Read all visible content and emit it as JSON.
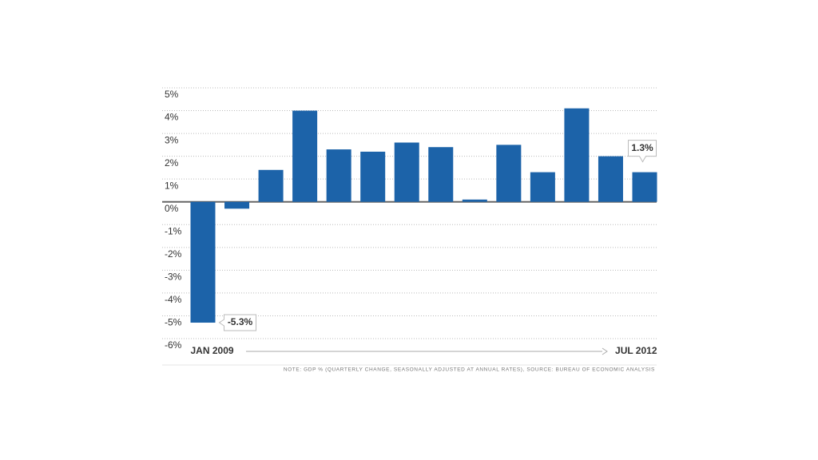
{
  "chart_data": {
    "type": "bar",
    "categories": [
      "JAN 2009",
      null,
      null,
      null,
      null,
      null,
      null,
      null,
      null,
      null,
      null,
      null,
      null,
      "JUL 2012"
    ],
    "values": [
      -5.3,
      -0.3,
      1.4,
      4.0,
      2.3,
      2.2,
      2.6,
      2.4,
      0.1,
      2.5,
      1.3,
      4.1,
      2.0,
      1.3
    ],
    "value_labels": [
      "-5.3%",
      null,
      null,
      null,
      null,
      null,
      null,
      null,
      null,
      null,
      null,
      null,
      null,
      "1.3%"
    ],
    "color": "#1c63a9",
    "ylim": [
      -6,
      5
    ],
    "yticks": [
      {
        "value": 5,
        "label": "5%"
      },
      {
        "value": 4,
        "label": "4%"
      },
      {
        "value": 3,
        "label": "3%"
      },
      {
        "value": 2,
        "label": "2%"
      },
      {
        "value": 1,
        "label": "1%"
      },
      {
        "value": 0,
        "label": "0%"
      },
      {
        "value": -1,
        "label": "-1%"
      },
      {
        "value": -2,
        "label": "-2%"
      },
      {
        "value": -3,
        "label": "-3%"
      },
      {
        "value": -4,
        "label": "-4%"
      },
      {
        "value": -5,
        "label": "-5%"
      },
      {
        "value": -6,
        "label": "-6%"
      }
    ],
    "grid": true,
    "note": "NOTE: GDP % (QUARTERLY CHANGE, SEASONALLY ADJUSTED AT ANNUAL RATES), SOURCE: BUREAU OF ECONOMIC ANALYSIS"
  }
}
